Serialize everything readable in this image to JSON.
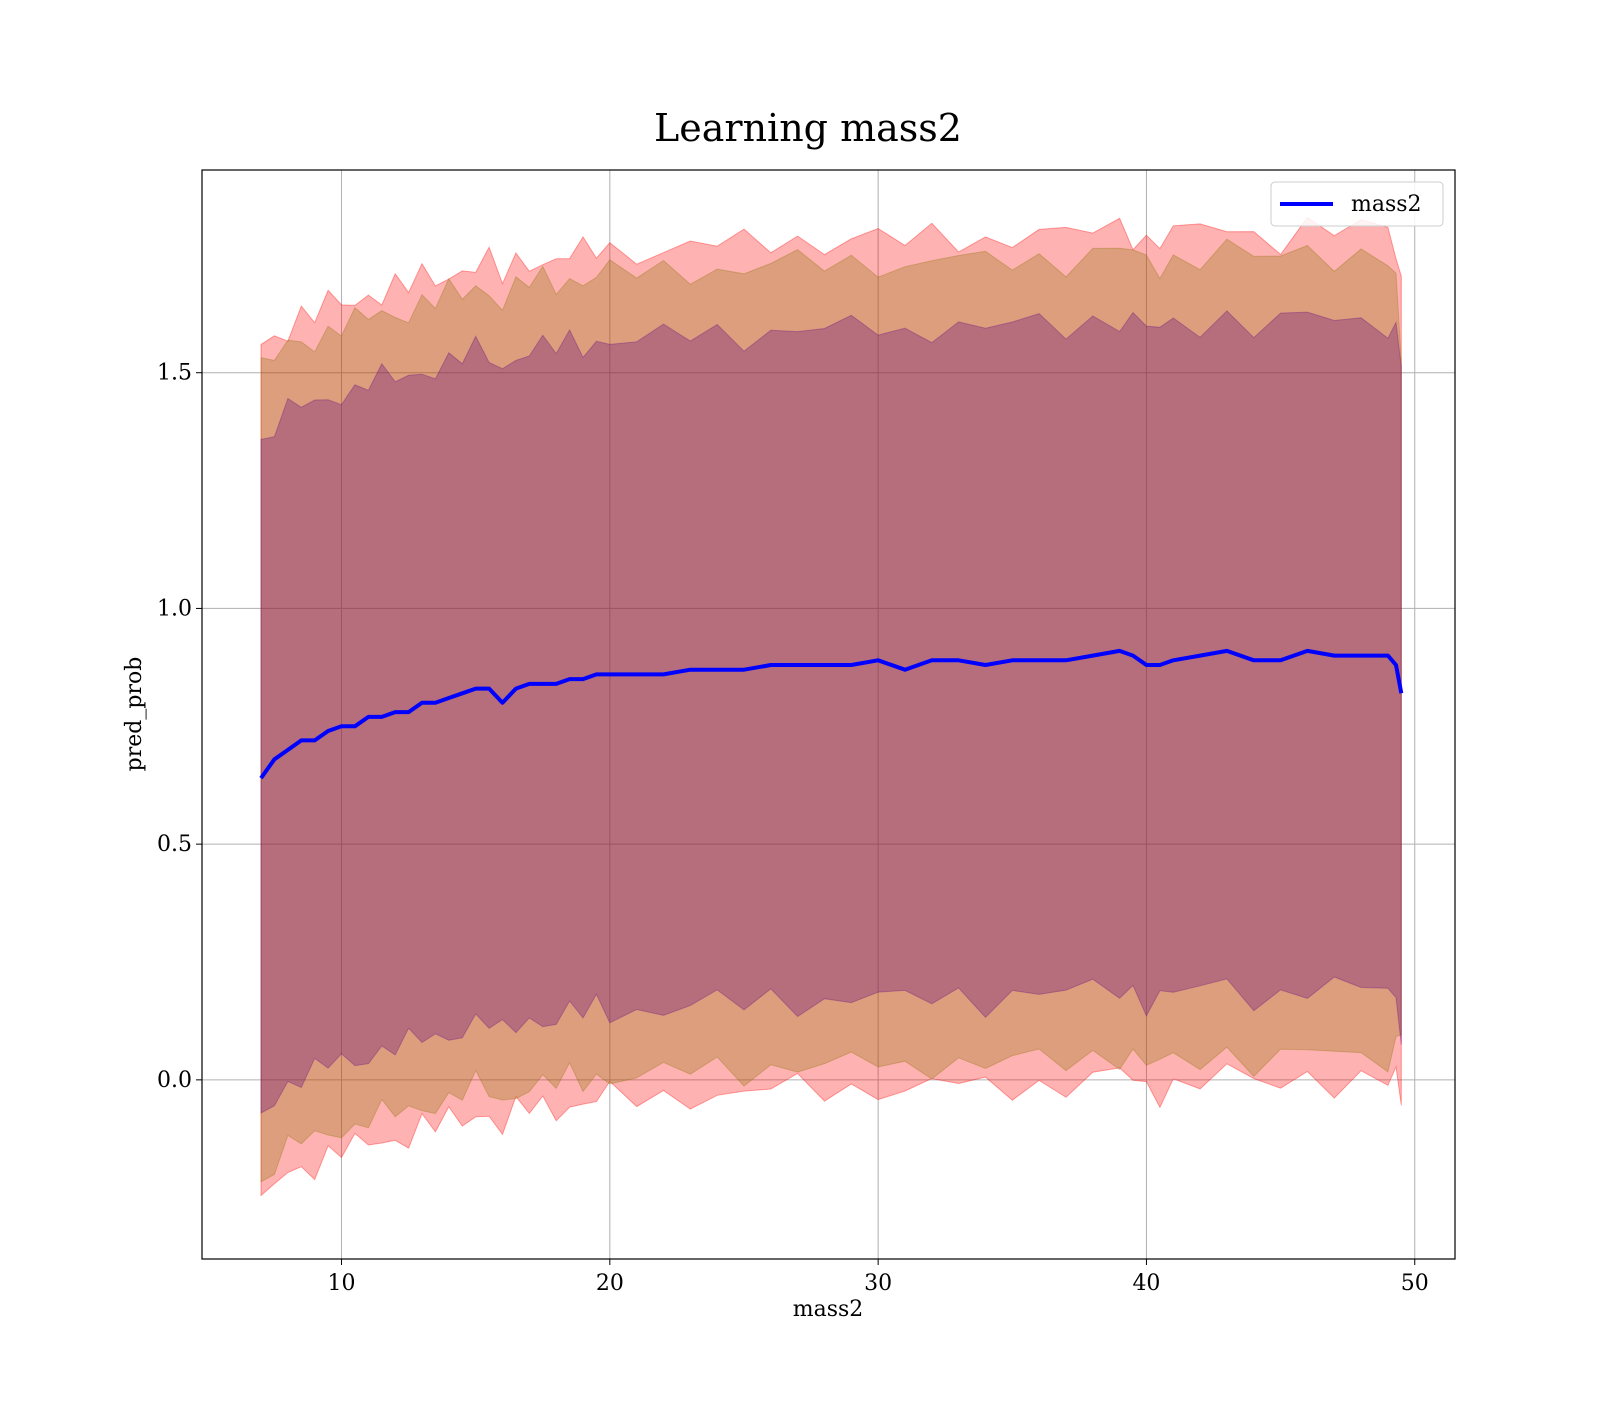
{
  "chart_data": {
    "type": "line",
    "title": "Learning mass2",
    "xlabel": "mass2",
    "ylabel": "pred_prob",
    "xlim": [
      4.8,
      51.5
    ],
    "ylim": [
      -0.38,
      1.93
    ],
    "xticks": [
      10,
      20,
      30,
      40,
      50
    ],
    "xtick_labels": [
      "10",
      "20",
      "30",
      "40",
      "50"
    ],
    "yticks": [
      0.0,
      0.5,
      1.0,
      1.5
    ],
    "ytick_labels": [
      "0.0",
      "0.5",
      "1.0",
      "1.5"
    ],
    "grid": true,
    "legend": {
      "position": "top-right",
      "entries": [
        "mass2"
      ]
    },
    "colors": {
      "line": "#0000ff",
      "band_outer": "#ff0000",
      "band_middle": "#8b7000",
      "band_inner": "#600080",
      "grid": "#b0b0b0"
    },
    "series": [
      {
        "name": "mass2",
        "x": [
          7.0,
          7.5,
          8.0,
          8.5,
          9.0,
          9.5,
          10.0,
          10.5,
          11.0,
          11.5,
          12.0,
          12.5,
          13.0,
          13.5,
          14.0,
          14.5,
          15.0,
          15.5,
          16.0,
          16.5,
          17.0,
          17.5,
          18.0,
          18.5,
          19.0,
          19.5,
          20.0,
          21.0,
          22.0,
          23.0,
          24.0,
          25.0,
          26.0,
          27.0,
          28.0,
          29.0,
          30.0,
          31.0,
          32.0,
          33.0,
          34.0,
          35.0,
          36.0,
          37.0,
          38.0,
          39.0,
          39.5,
          40.0,
          40.5,
          41.0,
          42.0,
          43.0,
          44.0,
          45.0,
          46.0,
          47.0,
          48.0,
          49.0,
          49.3,
          49.5
        ],
        "y": [
          0.64,
          0.68,
          0.7,
          0.72,
          0.72,
          0.74,
          0.75,
          0.75,
          0.77,
          0.77,
          0.78,
          0.78,
          0.8,
          0.8,
          0.81,
          0.82,
          0.83,
          0.83,
          0.8,
          0.83,
          0.84,
          0.84,
          0.84,
          0.85,
          0.85,
          0.86,
          0.86,
          0.86,
          0.86,
          0.87,
          0.87,
          0.87,
          0.88,
          0.88,
          0.88,
          0.88,
          0.89,
          0.87,
          0.89,
          0.89,
          0.88,
          0.89,
          0.89,
          0.89,
          0.9,
          0.91,
          0.9,
          0.88,
          0.88,
          0.89,
          0.9,
          0.91,
          0.89,
          0.89,
          0.91,
          0.9,
          0.9,
          0.9,
          0.88,
          0.82
        ]
      }
    ],
    "bands": [
      {
        "label": "outer",
        "half_width": [
          0.92,
          0.9,
          0.9,
          0.9,
          0.9,
          0.9,
          0.9,
          0.9,
          0.9,
          0.9,
          0.9,
          0.9,
          0.9,
          0.9,
          0.9,
          0.9,
          0.9,
          0.9,
          0.9,
          0.9,
          0.9,
          0.9,
          0.9,
          0.9,
          0.9,
          0.9,
          0.9,
          0.9,
          0.9,
          0.9,
          0.9,
          0.9,
          0.9,
          0.9,
          0.9,
          0.9,
          0.9,
          0.9,
          0.9,
          0.9,
          0.9,
          0.9,
          0.9,
          0.9,
          0.9,
          0.9,
          0.9,
          0.9,
          0.9,
          0.9,
          0.9,
          0.9,
          0.9,
          0.9,
          0.9,
          0.9,
          0.9,
          0.9,
          0.88,
          0.88
        ]
      },
      {
        "label": "middle",
        "half_width": [
          0.86,
          0.85,
          0.85,
          0.85,
          0.85,
          0.85,
          0.85,
          0.85,
          0.85,
          0.85,
          0.85,
          0.85,
          0.85,
          0.85,
          0.85,
          0.85,
          0.85,
          0.85,
          0.85,
          0.85,
          0.85,
          0.85,
          0.85,
          0.85,
          0.85,
          0.85,
          0.85,
          0.85,
          0.85,
          0.85,
          0.85,
          0.85,
          0.85,
          0.85,
          0.85,
          0.85,
          0.85,
          0.85,
          0.85,
          0.85,
          0.85,
          0.85,
          0.85,
          0.85,
          0.85,
          0.85,
          0.85,
          0.85,
          0.85,
          0.85,
          0.85,
          0.85,
          0.85,
          0.85,
          0.85,
          0.85,
          0.85,
          0.85,
          0.8,
          0.7
        ]
      },
      {
        "label": "inner",
        "half_width": [
          0.71,
          0.71,
          0.71,
          0.71,
          0.71,
          0.71,
          0.71,
          0.71,
          0.71,
          0.71,
          0.71,
          0.71,
          0.71,
          0.71,
          0.71,
          0.71,
          0.71,
          0.71,
          0.71,
          0.71,
          0.71,
          0.71,
          0.71,
          0.71,
          0.71,
          0.71,
          0.71,
          0.71,
          0.71,
          0.71,
          0.71,
          0.71,
          0.71,
          0.71,
          0.71,
          0.71,
          0.71,
          0.71,
          0.71,
          0.71,
          0.71,
          0.71,
          0.71,
          0.71,
          0.71,
          0.71,
          0.71,
          0.71,
          0.71,
          0.71,
          0.71,
          0.71,
          0.71,
          0.71,
          0.71,
          0.71,
          0.71,
          0.71,
          0.71,
          0.71
        ]
      }
    ]
  }
}
